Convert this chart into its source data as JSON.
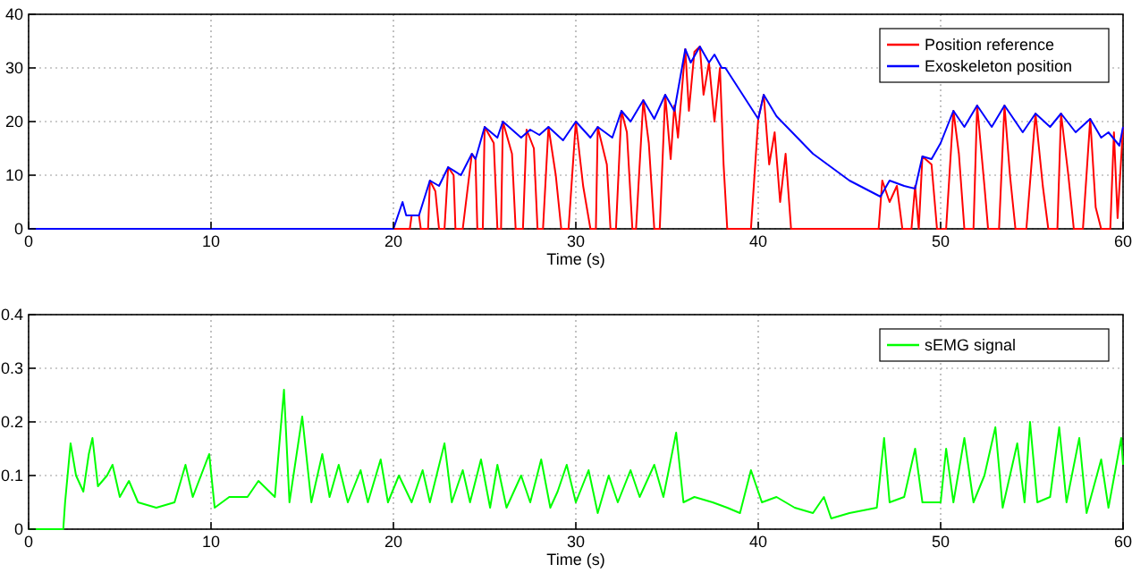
{
  "chart_data": [
    {
      "type": "line",
      "xlabel": "Time (s)",
      "xlim": [
        0,
        60
      ],
      "xticks": [
        0,
        10,
        20,
        30,
        40,
        50,
        60
      ],
      "ylim": [
        0,
        40
      ],
      "yticks": [
        0,
        10,
        20,
        30,
        40
      ],
      "grid": true,
      "legend": "top right",
      "line_style": "solid",
      "series": [
        {
          "name": "Position reference",
          "color": "#ff0000",
          "x": [
            0,
            20.9,
            21.0,
            21.4,
            21.5,
            21.9,
            22.0,
            22.3,
            22.5,
            22.8,
            23.0,
            23.3,
            23.4,
            23.8,
            24.3,
            24.5,
            24.6,
            24.9,
            25.0,
            25.5,
            25.7,
            25.9,
            26.0,
            26.5,
            26.7,
            27.1,
            27.3,
            27.7,
            27.9,
            28.2,
            28.5,
            28.9,
            29.2,
            29.6,
            30.0,
            30.4,
            30.8,
            31.1,
            31.2,
            31.7,
            31.9,
            32.2,
            32.5,
            32.8,
            33.1,
            33.3,
            33.7,
            34.0,
            34.3,
            34.6,
            34.9,
            35.2,
            35.4,
            35.6,
            36.0,
            36.2,
            36.5,
            36.8,
            37.0,
            37.3,
            37.6,
            37.9,
            38.1,
            38.3,
            39.6,
            40.0,
            40.3,
            40.6,
            40.9,
            41.2,
            41.5,
            41.8,
            46.6,
            46.8,
            47.2,
            47.6,
            47.9,
            48.4,
            48.6,
            48.8,
            49.0,
            49.5,
            49.8,
            50.3,
            50.7,
            51.0,
            51.3,
            51.8,
            52.0,
            52.4,
            52.6,
            53.2,
            53.5,
            53.8,
            54.1,
            54.7,
            55.2,
            55.6,
            55.9,
            56.4,
            56.6,
            57.0,
            57.3,
            57.8,
            58.2,
            58.5,
            58.8,
            59.3,
            59.5,
            59.7,
            60
          ],
          "values": [
            0,
            0,
            2.5,
            2.5,
            0,
            0,
            9,
            7,
            0,
            0,
            11.5,
            10,
            0,
            0,
            14,
            13,
            0,
            0,
            19,
            16,
            0,
            0,
            20,
            14,
            0,
            0,
            18.5,
            15,
            0,
            0,
            19,
            10,
            0,
            0,
            20,
            8,
            0,
            0,
            19,
            12,
            0,
            0,
            22,
            18,
            0,
            0,
            24,
            16,
            0,
            0,
            25,
            13,
            23,
            17,
            33.5,
            22,
            33,
            34,
            25,
            31,
            20,
            30,
            12,
            0,
            0,
            20.5,
            25,
            12,
            18,
            5,
            14,
            0,
            0,
            9,
            5,
            8,
            0,
            0,
            8,
            0,
            13.5,
            12,
            0,
            0,
            22,
            14,
            0,
            0,
            23,
            8,
            0,
            0,
            23,
            10,
            0,
            0,
            21.5,
            8,
            0,
            0,
            21.5,
            10,
            0,
            0,
            20.5,
            4,
            0,
            0,
            18,
            2,
            19
          ]
        },
        {
          "name": "Exoskeleton position",
          "color": "#0000ff",
          "x": [
            0,
            20,
            20.5,
            20.7,
            21.4,
            22,
            22.5,
            23,
            23.7,
            24.3,
            24.5,
            25,
            25.7,
            26,
            27,
            27.5,
            28,
            28.5,
            29.3,
            30,
            30.8,
            31.2,
            32,
            32.5,
            33,
            33.7,
            34.3,
            34.9,
            35.4,
            36,
            36.3,
            36.8,
            37.3,
            37.6,
            38,
            38.2,
            40,
            40.3,
            41,
            43,
            45,
            46.7,
            47.2,
            48,
            48.6,
            49,
            49.5,
            50,
            50.7,
            51.3,
            52,
            52.8,
            53.5,
            54.5,
            55.2,
            56,
            56.6,
            57.4,
            58.2,
            58.8,
            59.2,
            59.8,
            60
          ],
          "values": [
            0,
            0,
            5,
            2.5,
            2.5,
            9,
            8,
            11.5,
            10,
            14,
            13,
            19,
            17,
            20,
            17,
            18.5,
            17.5,
            19,
            16.5,
            20,
            17,
            19,
            17,
            22,
            20,
            24,
            20.5,
            25,
            22,
            33.5,
            31,
            34,
            31,
            32.5,
            30,
            30,
            20.5,
            25,
            21,
            14,
            9,
            6,
            9,
            8,
            7.5,
            13.5,
            13,
            16,
            22,
            19,
            23,
            19,
            23,
            18,
            21.5,
            19,
            21.5,
            18,
            20.5,
            17,
            18,
            15.5,
            19
          ]
        }
      ]
    },
    {
      "type": "line",
      "xlabel": "Time (s)",
      "xlim": [
        0,
        60
      ],
      "xticks": [
        0,
        10,
        20,
        30,
        40,
        50,
        60
      ],
      "ylim": [
        0,
        0.4
      ],
      "yticks": [
        0,
        0.1,
        0.2,
        0.3,
        0.4
      ],
      "grid": true,
      "legend": "top right",
      "line_style": "solid",
      "series": [
        {
          "name": "sEMG signal",
          "color": "#00ff00",
          "x": [
            0,
            1.9,
            2.0,
            2.3,
            2.6,
            3.0,
            3.3,
            3.5,
            3.8,
            4.3,
            4.6,
            5.0,
            5.5,
            6,
            7,
            8,
            8.6,
            9,
            9.9,
            10.2,
            11,
            12,
            12.6,
            13.5,
            14.0,
            14.3,
            15.0,
            15.5,
            16.1,
            16.5,
            17,
            17.5,
            18.2,
            18.6,
            19.3,
            19.7,
            20.3,
            21,
            21.6,
            22,
            22.8,
            23.2,
            23.8,
            24.2,
            24.8,
            25.3,
            25.7,
            26.2,
            27,
            27.5,
            28.1,
            28.6,
            29,
            29.5,
            30,
            30.7,
            31.2,
            31.8,
            32.3,
            33,
            33.5,
            34.3,
            34.8,
            35.5,
            35.9,
            36.5,
            37.5,
            38.3,
            39,
            39.6,
            40.2,
            41,
            42,
            43,
            43.6,
            44,
            45,
            46.5,
            46.9,
            47.2,
            48,
            48.6,
            49,
            50,
            50.3,
            50.7,
            51.3,
            51.8,
            52.4,
            53.0,
            53.4,
            54.2,
            54.6,
            54.9,
            55.3,
            56.0,
            56.5,
            56.9,
            57.6,
            58,
            58.8,
            59.2,
            59.9,
            60
          ],
          "values": [
            0,
            0,
            0.05,
            0.16,
            0.1,
            0.07,
            0.14,
            0.17,
            0.08,
            0.1,
            0.12,
            0.06,
            0.09,
            0.05,
            0.04,
            0.05,
            0.12,
            0.06,
            0.14,
            0.04,
            0.06,
            0.06,
            0.09,
            0.06,
            0.26,
            0.05,
            0.21,
            0.05,
            0.14,
            0.06,
            0.12,
            0.05,
            0.11,
            0.05,
            0.13,
            0.05,
            0.1,
            0.05,
            0.11,
            0.05,
            0.16,
            0.05,
            0.11,
            0.05,
            0.13,
            0.04,
            0.12,
            0.04,
            0.1,
            0.05,
            0.13,
            0.04,
            0.07,
            0.12,
            0.05,
            0.11,
            0.03,
            0.1,
            0.05,
            0.11,
            0.06,
            0.12,
            0.06,
            0.18,
            0.05,
            0.06,
            0.05,
            0.04,
            0.03,
            0.11,
            0.05,
            0.06,
            0.04,
            0.03,
            0.06,
            0.02,
            0.03,
            0.04,
            0.17,
            0.05,
            0.06,
            0.15,
            0.05,
            0.05,
            0.15,
            0.05,
            0.17,
            0.05,
            0.1,
            0.19,
            0.04,
            0.16,
            0.05,
            0.2,
            0.05,
            0.06,
            0.19,
            0.05,
            0.17,
            0.03,
            0.13,
            0.04,
            0.17,
            0.12
          ]
        }
      ]
    }
  ]
}
